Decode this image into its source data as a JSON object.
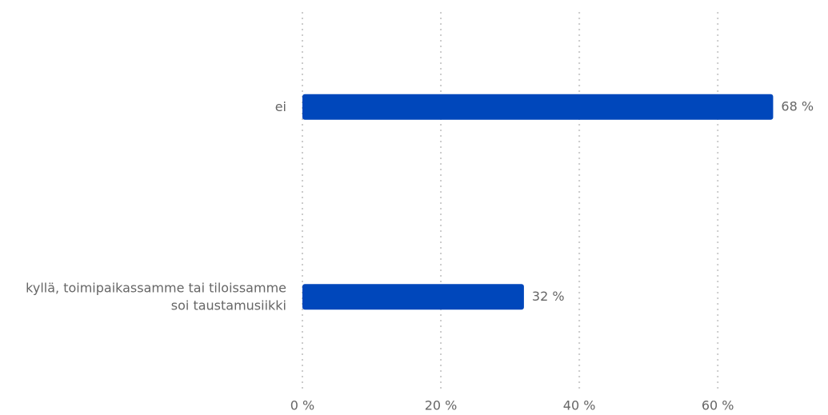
{
  "chart_data": {
    "type": "barh",
    "categories": [
      "ei",
      "kyllä, toimipaikassamme tai tiloissamme soi taustamusiikki"
    ],
    "values": [
      68,
      32
    ],
    "value_labels": [
      "68 %",
      "32 %"
    ],
    "color": "#0047bb",
    "xlim": [
      0,
      75
    ],
    "xticks": [
      {
        "value": 0,
        "label": "0 %"
      },
      {
        "value": 20,
        "label": "20 %"
      },
      {
        "value": 40,
        "label": "40 %"
      },
      {
        "value": 60,
        "label": "60 %"
      }
    ],
    "grid": true
  }
}
